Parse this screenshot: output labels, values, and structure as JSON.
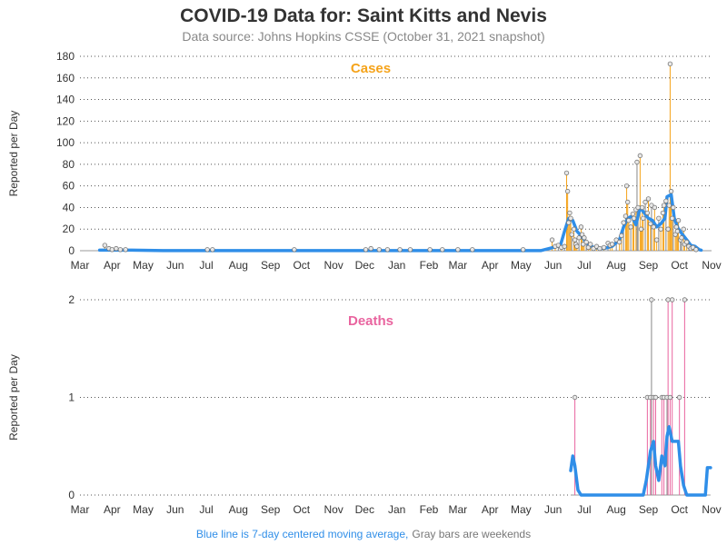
{
  "title": "COVID-19 Data for: Saint Kitts and Nevis",
  "subtitle": "Data source: Johns Hopkins CSSE (October 31, 2021 snapshot)",
  "footnote": {
    "blue_part": "Blue line is 7-day centered moving average,",
    "gray_part": "Gray bars are weekends"
  },
  "colors": {
    "cases": "#f5a31a",
    "deaths": "#e9649f",
    "moving_average": "#2f8ee8",
    "weekend_bars": "#888888",
    "gridline": "#555555"
  },
  "chart_data": [
    {
      "type": "bar",
      "panel": "cases",
      "title": "Cases",
      "ylabel": "Reported per Day",
      "ylim": [
        0,
        180
      ],
      "yticks": [
        "0",
        "20",
        "40",
        "60",
        "80",
        "100",
        "120",
        "140",
        "160",
        "180"
      ],
      "ytick_values": [
        0,
        20,
        40,
        60,
        80,
        100,
        120,
        140,
        160,
        180
      ],
      "xticks": [
        "Mar",
        "Apr",
        "May",
        "Jun",
        "Jul",
        "Aug",
        "Sep",
        "Oct",
        "Nov",
        "Dec",
        "Jan",
        "Feb",
        "Mar",
        "Apr",
        "May",
        "Jun",
        "Jul",
        "Aug",
        "Sep",
        "Oct",
        "Nov"
      ],
      "xtick_dates": [
        "2020-03-01",
        "2020-04-01",
        "2020-05-01",
        "2020-06-01",
        "2020-07-01",
        "2020-08-01",
        "2020-09-01",
        "2020-10-01",
        "2020-11-01",
        "2020-12-01",
        "2021-01-01",
        "2021-02-01",
        "2021-03-01",
        "2021-04-01",
        "2021-05-01",
        "2021-06-01",
        "2021-07-01",
        "2021-08-01",
        "2021-09-01",
        "2021-10-01",
        "2021-11-01"
      ],
      "x_range": [
        "2020-03-01",
        "2021-11-01"
      ],
      "grid": "horizontal dotted",
      "series": [
        {
          "kind": "daily",
          "points": [
            [
              "2020-03-25",
              5
            ],
            [
              "2020-03-29",
              2
            ],
            [
              "2020-04-01",
              1
            ],
            [
              "2020-04-05",
              2
            ],
            [
              "2020-04-09",
              1
            ],
            [
              "2020-04-14",
              1
            ],
            [
              "2020-07-02",
              1
            ],
            [
              "2020-07-07",
              1
            ],
            [
              "2020-09-24",
              1
            ],
            [
              "2020-12-02",
              1
            ],
            [
              "2020-12-07",
              2
            ],
            [
              "2020-12-15",
              1
            ],
            [
              "2020-12-23",
              1
            ],
            [
              "2021-01-04",
              1
            ],
            [
              "2021-01-14",
              1
            ],
            [
              "2021-02-02",
              1
            ],
            [
              "2021-02-14",
              1
            ],
            [
              "2021-03-01",
              1
            ],
            [
              "2021-03-15",
              1
            ],
            [
              "2021-05-03",
              1
            ],
            [
              "2021-05-31",
              10
            ],
            [
              "2021-06-03",
              4
            ],
            [
              "2021-06-06",
              5
            ],
            [
              "2021-06-09",
              3
            ],
            [
              "2021-06-12",
              4
            ],
            [
              "2021-06-14",
              72
            ],
            [
              "2021-06-15",
              55
            ],
            [
              "2021-06-16",
              26
            ],
            [
              "2021-06-17",
              35
            ],
            [
              "2021-06-18",
              30
            ],
            [
              "2021-06-19",
              15
            ],
            [
              "2021-06-21",
              20
            ],
            [
              "2021-06-22",
              10
            ],
            [
              "2021-06-23",
              6
            ],
            [
              "2021-06-24",
              4
            ],
            [
              "2021-06-26",
              12
            ],
            [
              "2021-06-28",
              22
            ],
            [
              "2021-06-29",
              15
            ],
            [
              "2021-06-30",
              6
            ],
            [
              "2021-07-01",
              12
            ],
            [
              "2021-07-03",
              8
            ],
            [
              "2021-07-05",
              3
            ],
            [
              "2021-07-07",
              6
            ],
            [
              "2021-07-10",
              2
            ],
            [
              "2021-07-13",
              4
            ],
            [
              "2021-07-16",
              2
            ],
            [
              "2021-07-20",
              3
            ],
            [
              "2021-07-24",
              7
            ],
            [
              "2021-07-26",
              5
            ],
            [
              "2021-07-28",
              6
            ],
            [
              "2021-08-01",
              10
            ],
            [
              "2021-08-04",
              8
            ],
            [
              "2021-08-06",
              14
            ],
            [
              "2021-08-08",
              26
            ],
            [
              "2021-08-10",
              32
            ],
            [
              "2021-08-11",
              60
            ],
            [
              "2021-08-12",
              45
            ],
            [
              "2021-08-13",
              28
            ],
            [
              "2021-08-15",
              22
            ],
            [
              "2021-08-17",
              34
            ],
            [
              "2021-08-18",
              30
            ],
            [
              "2021-08-20",
              38
            ],
            [
              "2021-08-21",
              82
            ],
            [
              "2021-08-22",
              40
            ],
            [
              "2021-08-24",
              88
            ],
            [
              "2021-08-25",
              20
            ],
            [
              "2021-08-26",
              40
            ],
            [
              "2021-08-27",
              30
            ],
            [
              "2021-08-29",
              45
            ],
            [
              "2021-08-31",
              35
            ],
            [
              "2021-09-01",
              48
            ],
            [
              "2021-09-03",
              25
            ],
            [
              "2021-09-04",
              42
            ],
            [
              "2021-09-06",
              22
            ],
            [
              "2021-09-07",
              40
            ],
            [
              "2021-09-09",
              10
            ],
            [
              "2021-09-11",
              30
            ],
            [
              "2021-09-13",
              20
            ],
            [
              "2021-09-15",
              35
            ],
            [
              "2021-09-16",
              42
            ],
            [
              "2021-09-18",
              46
            ],
            [
              "2021-09-20",
              20
            ],
            [
              "2021-09-21",
              42
            ],
            [
              "2021-09-22",
              173
            ],
            [
              "2021-09-23",
              55
            ],
            [
              "2021-09-24",
              30
            ],
            [
              "2021-09-25",
              40
            ],
            [
              "2021-09-27",
              15
            ],
            [
              "2021-09-28",
              22
            ],
            [
              "2021-09-29",
              18
            ],
            [
              "2021-09-30",
              28
            ],
            [
              "2021-10-02",
              10
            ],
            [
              "2021-10-03",
              12
            ],
            [
              "2021-10-05",
              20
            ],
            [
              "2021-10-06",
              6
            ],
            [
              "2021-10-08",
              8
            ],
            [
              "2021-10-10",
              4
            ],
            [
              "2021-10-12",
              2
            ],
            [
              "2021-10-14",
              3
            ],
            [
              "2021-10-17",
              1
            ]
          ]
        },
        {
          "kind": "moving_average",
          "points": [
            [
              "2020-03-20",
              0.5
            ],
            [
              "2020-04-20",
              0.5
            ],
            [
              "2020-05-20",
              0.1
            ],
            [
              "2021-05-20",
              0.1
            ],
            [
              "2021-06-01",
              3
            ],
            [
              "2021-06-08",
              5
            ],
            [
              "2021-06-12",
              18
            ],
            [
              "2021-06-16",
              30
            ],
            [
              "2021-06-20",
              28
            ],
            [
              "2021-06-24",
              18
            ],
            [
              "2021-06-28",
              14
            ],
            [
              "2021-07-01",
              10
            ],
            [
              "2021-07-05",
              6
            ],
            [
              "2021-07-10",
              3
            ],
            [
              "2021-07-20",
              2
            ],
            [
              "2021-07-28",
              4
            ],
            [
              "2021-08-04",
              10
            ],
            [
              "2021-08-08",
              22
            ],
            [
              "2021-08-12",
              30
            ],
            [
              "2021-08-16",
              32
            ],
            [
              "2021-08-20",
              24
            ],
            [
              "2021-08-24",
              40
            ],
            [
              "2021-08-28",
              35
            ],
            [
              "2021-09-01",
              30
            ],
            [
              "2021-09-05",
              28
            ],
            [
              "2021-09-09",
              22
            ],
            [
              "2021-09-13",
              25
            ],
            [
              "2021-09-17",
              30
            ],
            [
              "2021-09-19",
              50
            ],
            [
              "2021-09-23",
              52
            ],
            [
              "2021-09-26",
              30
            ],
            [
              "2021-09-30",
              20
            ],
            [
              "2021-10-04",
              15
            ],
            [
              "2021-10-08",
              10
            ],
            [
              "2021-10-12",
              5
            ],
            [
              "2021-10-16",
              4
            ],
            [
              "2021-10-20",
              1
            ],
            [
              "2021-10-22",
              0.5
            ]
          ]
        }
      ]
    },
    {
      "type": "bar",
      "panel": "deaths",
      "title": "Deaths",
      "ylabel": "Reported per Day",
      "ylim": [
        0,
        2
      ],
      "yticks": [
        "0",
        "1",
        "2"
      ],
      "ytick_values": [
        0,
        1,
        2
      ],
      "xticks": [
        "Mar",
        "Apr",
        "May",
        "Jun",
        "Jul",
        "Aug",
        "Sep",
        "Oct",
        "Nov",
        "Dec",
        "Jan",
        "Feb",
        "Mar",
        "Apr",
        "May",
        "Jun",
        "Jul",
        "Aug",
        "Sep",
        "Oct",
        "Nov"
      ],
      "xtick_dates": [
        "2020-03-01",
        "2020-04-01",
        "2020-05-01",
        "2020-06-01",
        "2020-07-01",
        "2020-08-01",
        "2020-09-01",
        "2020-10-01",
        "2020-11-01",
        "2020-12-01",
        "2021-01-01",
        "2021-02-01",
        "2021-03-01",
        "2021-04-01",
        "2021-05-01",
        "2021-06-01",
        "2021-07-01",
        "2021-08-01",
        "2021-09-01",
        "2021-10-01",
        "2021-11-01"
      ],
      "x_range": [
        "2021-06-18",
        "2021-10-31"
      ],
      "grid": "horizontal dotted",
      "series": [
        {
          "kind": "daily",
          "points": [
            [
              "2021-06-22",
              1
            ],
            [
              "2021-08-31",
              1
            ],
            [
              "2021-09-03",
              1
            ],
            [
              "2021-09-04",
              2
            ],
            [
              "2021-09-06",
              1
            ],
            [
              "2021-09-08",
              1
            ],
            [
              "2021-09-14",
              1
            ],
            [
              "2021-09-16",
              1
            ],
            [
              "2021-09-19",
              1
            ],
            [
              "2021-09-20",
              2
            ],
            [
              "2021-09-22",
              1
            ],
            [
              "2021-09-24",
              2
            ],
            [
              "2021-10-01",
              1
            ],
            [
              "2021-10-06",
              2
            ]
          ]
        },
        {
          "kind": "moving_average",
          "points": [
            [
              "2021-06-18",
              0.25
            ],
            [
              "2021-06-20",
              0.4
            ],
            [
              "2021-06-22",
              0.3
            ],
            [
              "2021-06-25",
              0.05
            ],
            [
              "2021-06-28",
              0
            ],
            [
              "2021-08-27",
              0
            ],
            [
              "2021-08-30",
              0.15
            ],
            [
              "2021-09-01",
              0.3
            ],
            [
              "2021-09-03",
              0.45
            ],
            [
              "2021-09-06",
              0.55
            ],
            [
              "2021-09-08",
              0.3
            ],
            [
              "2021-09-11",
              0.15
            ],
            [
              "2021-09-14",
              0.4
            ],
            [
              "2021-09-17",
              0.3
            ],
            [
              "2021-09-19",
              0.6
            ],
            [
              "2021-09-21",
              0.7
            ],
            [
              "2021-09-24",
              0.55
            ],
            [
              "2021-09-27",
              0.55
            ],
            [
              "2021-09-30",
              0.55
            ],
            [
              "2021-10-02",
              0.3
            ],
            [
              "2021-10-05",
              0.1
            ],
            [
              "2021-10-08",
              0
            ],
            [
              "2021-10-26",
              0
            ],
            [
              "2021-10-28",
              0.28
            ],
            [
              "2021-10-31",
              0.28
            ]
          ]
        }
      ]
    }
  ]
}
